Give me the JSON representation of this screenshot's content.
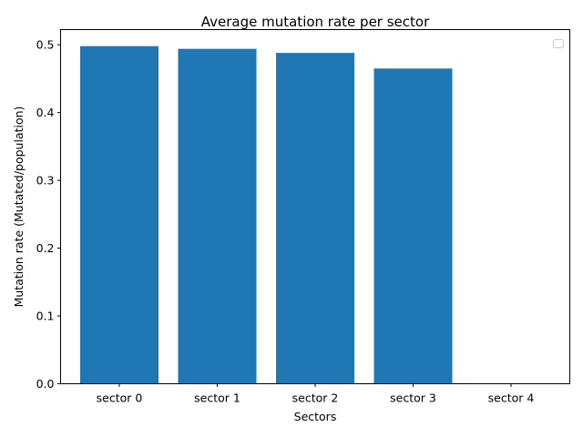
{
  "chart_data": {
    "type": "bar",
    "title": "Average mutation rate per sector",
    "xlabel": "Sectors",
    "ylabel": "Mutation rate (Mutated/population)",
    "categories": [
      "sector 0",
      "sector 1",
      "sector 2",
      "sector 3",
      "sector 4"
    ],
    "values": [
      0.498,
      0.494,
      0.488,
      0.465,
      0.0
    ],
    "ylim": [
      0,
      0.5224
    ],
    "yticks": [
      0.0,
      0.1,
      0.2,
      0.3,
      0.4,
      0.5
    ],
    "ytick_labels": [
      "0.0",
      "0.1",
      "0.2",
      "0.3",
      "0.4",
      "0.5"
    ],
    "bar_color": "#1f77b4",
    "legend": {
      "placement": "top-right",
      "entries": []
    },
    "grid": false
  }
}
